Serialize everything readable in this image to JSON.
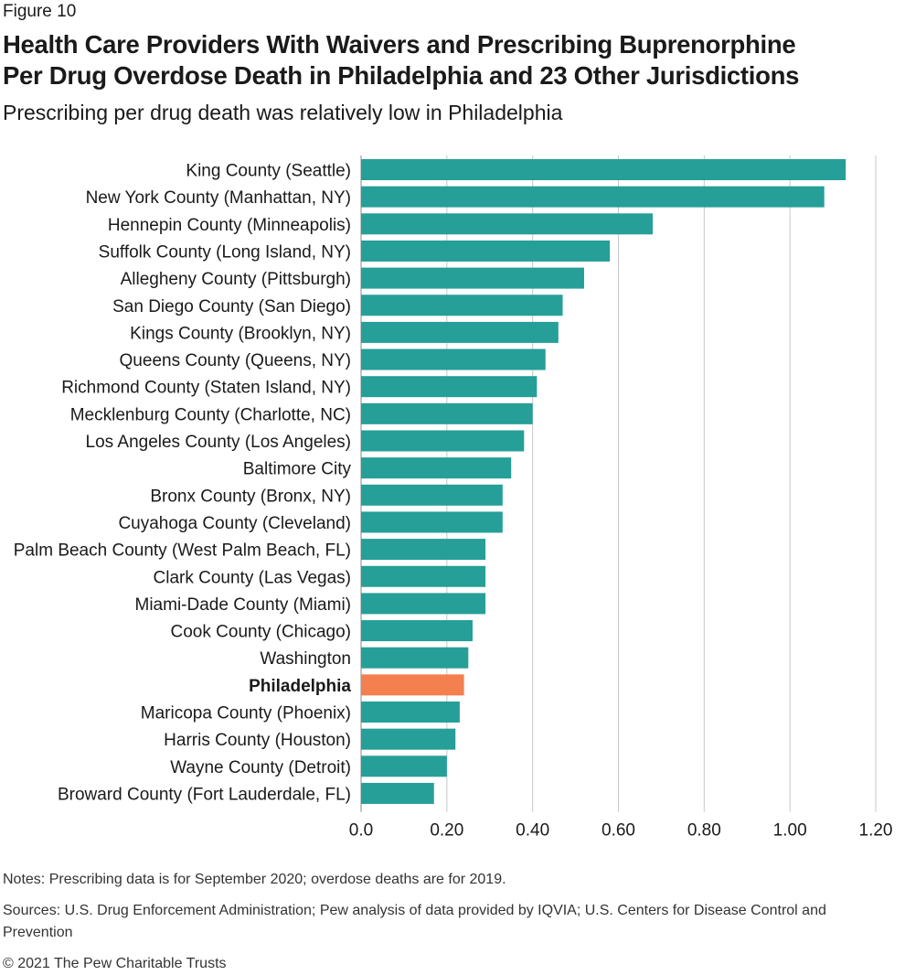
{
  "figure_label": "Figure 10",
  "title_line1": "Health Care Providers With Waivers and Prescribing Buprenorphine",
  "title_line2": "Per Drug Overdose Death in Philadelphia and 23 Other Jurisdictions",
  "subtitle": "Prescribing per drug death was relatively low in Philadelphia",
  "notes": "Notes: Prescribing data is for September 2020; overdose deaths are for 2019.",
  "sources": "Sources: U.S. Drug Enforcement Administration; Pew analysis of data provided by IQVIA; U.S. Centers for Disease Control and Prevention",
  "copyright": "© 2021 The Pew Charitable Trusts",
  "colors": {
    "bar": "#259F98",
    "highlight": "#F47F4F",
    "grid": "#C8C8C8"
  },
  "chart_data": {
    "type": "bar",
    "orientation": "horizontal",
    "categories": [
      "King County (Seattle)",
      "New York County (Manhattan, NY)",
      "Hennepin County (Minneapolis)",
      "Suffolk County (Long Island, NY)",
      "Allegheny County (Pittsburgh)",
      "San Diego County (San Diego)",
      "Kings County (Brooklyn, NY)",
      "Queens County (Queens, NY)",
      "Richmond County (Staten Island, NY)",
      "Mecklenburg County (Charlotte, NC)",
      "Los Angeles County (Los Angeles)",
      "Baltimore City",
      "Bronx County (Bronx, NY)",
      "Cuyahoga County (Cleveland)",
      "Palm Beach County (West Palm Beach, FL)",
      "Clark County (Las Vegas)",
      "Miami-Dade County (Miami)",
      "Cook County (Chicago)",
      "Washington",
      "Philadelphia",
      "Maricopa County (Phoenix)",
      "Harris County (Houston)",
      "Wayne County (Detroit)",
      "Broward County (Fort Lauderdale, FL)"
    ],
    "values": [
      1.13,
      1.08,
      0.68,
      0.58,
      0.52,
      0.47,
      0.46,
      0.43,
      0.41,
      0.4,
      0.38,
      0.35,
      0.33,
      0.33,
      0.29,
      0.29,
      0.29,
      0.26,
      0.25,
      0.24,
      0.23,
      0.22,
      0.2,
      0.17
    ],
    "highlight": "Philadelphia",
    "xlim": [
      0,
      1.2
    ],
    "xticks": [
      0,
      0.2,
      0.4,
      0.6,
      0.8,
      1.0,
      1.2
    ],
    "xtick_labels": [
      "0.0",
      "0.20",
      "0.40",
      "0.60",
      "0.80",
      "1.00",
      "1.20"
    ],
    "grid": true,
    "legend": "none"
  }
}
